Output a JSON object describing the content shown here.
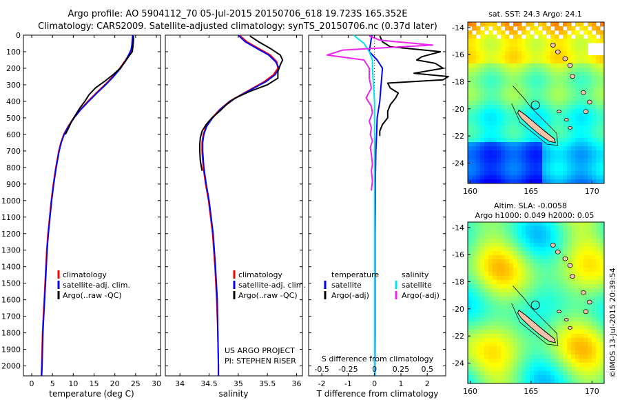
{
  "header": {
    "line1": "Argo profile: AO 5904112_70 05-Jul-2015 20150706_618 19.723S 165.352E",
    "line2": "Climatology: CARS2009. Satellite-adjusted climatology: synTS_20150706.nc (0.37d later)"
  },
  "colors": {
    "climatology": "#ff0000",
    "satellite": "#0000ff",
    "argo": "#000000",
    "sal_satellite": "#00e5ee",
    "sal_argo": "#ee22ee",
    "land": "#f4c2a8"
  },
  "depth_ticks": [
    0,
    100,
    200,
    300,
    400,
    500,
    600,
    700,
    800,
    900,
    1000,
    1100,
    1200,
    1300,
    1400,
    1500,
    1600,
    1700,
    1800,
    1900,
    2000
  ],
  "chart_data": [
    {
      "id": "temperature",
      "type": "line",
      "xlabel": "temperature (deg C)",
      "ylabel": "depth",
      "xlim": [
        -2,
        31
      ],
      "ylim": [
        2060,
        0
      ],
      "xticks": [
        0,
        5,
        10,
        15,
        20,
        25,
        30
      ],
      "legend": [
        "climatology",
        "satellite-adj. clim.",
        "Argo(..raw -QC)"
      ],
      "series": [
        {
          "name": "climatology",
          "depth": [
            0,
            30,
            60,
            90,
            110,
            150,
            200,
            250,
            300,
            350,
            400,
            450,
            500,
            550,
            600,
            650,
            700,
            800,
            900,
            1000,
            1100,
            1200,
            1300,
            1400,
            1500,
            1600,
            1700,
            1800,
            1900,
            2000,
            2060
          ],
          "value": [
            24.4,
            24.4,
            24.3,
            24.1,
            23.6,
            22.6,
            21.2,
            19.5,
            17.6,
            15.5,
            13.5,
            11.7,
            10.1,
            8.8,
            7.7,
            7.0,
            6.5,
            5.8,
            5.2,
            4.7,
            4.3,
            3.9,
            3.6,
            3.4,
            3.2,
            3.0,
            2.8,
            2.6,
            2.5,
            2.4,
            2.3
          ]
        },
        {
          "name": "satellite-adj. clim.",
          "depth": [
            0,
            30,
            60,
            90,
            110,
            150,
            200,
            250,
            300,
            350,
            400,
            450,
            500,
            550,
            600,
            650,
            700,
            800,
            900,
            1000,
            1100,
            1200,
            1300,
            1400,
            1500,
            1600,
            1700,
            1800,
            1900,
            2000,
            2060
          ],
          "value": [
            24.3,
            24.2,
            24.1,
            23.9,
            23.5,
            22.7,
            21.4,
            19.7,
            17.8,
            15.7,
            13.7,
            11.8,
            10.2,
            8.9,
            7.8,
            7.1,
            6.6,
            5.9,
            5.3,
            4.8,
            4.4,
            4.0,
            3.7,
            3.5,
            3.3,
            3.1,
            2.9,
            2.7,
            2.6,
            2.5,
            2.4
          ]
        },
        {
          "name": "Argo(..raw -QC)",
          "depth": [
            5,
            30,
            60,
            100,
            130,
            160,
            200,
            240,
            280,
            320,
            360,
            400,
            440,
            480,
            520,
            560,
            600
          ],
          "value": [
            24.5,
            24.5,
            24.4,
            24.2,
            23.3,
            22.5,
            21.3,
            19.5,
            17.5,
            15.3,
            13.8,
            12.8,
            11.6,
            10.6,
            9.6,
            8.9,
            8.1
          ]
        }
      ]
    },
    {
      "id": "salinity",
      "type": "line",
      "xlabel": "salinity",
      "ylabel": "depth",
      "xlim": [
        33.75,
        36.1
      ],
      "ylim": [
        2060,
        0
      ],
      "xticks": [
        34,
        34.5,
        35,
        35.5,
        36
      ],
      "legend": [
        "climatology",
        "satellite-adj. clim.",
        "Argo(..raw -QC)"
      ],
      "annotation": [
        "US ARGO PROJECT",
        "PI: STEPHEN RISER"
      ],
      "series": [
        {
          "name": "climatology",
          "depth": [
            0,
            40,
            80,
            120,
            160,
            200,
            240,
            280,
            320,
            360,
            400,
            450,
            500,
            550,
            600,
            650,
            700,
            800,
            900,
            1000,
            1200,
            1400,
            1600,
            1800,
            2000,
            2060
          ],
          "value": [
            35.02,
            35.15,
            35.35,
            35.55,
            35.66,
            35.68,
            35.6,
            35.45,
            35.25,
            35.05,
            34.85,
            34.68,
            34.55,
            34.45,
            34.4,
            34.38,
            34.38,
            34.4,
            34.44,
            34.49,
            34.56,
            34.6,
            34.63,
            34.65,
            34.66,
            34.66
          ]
        },
        {
          "name": "satellite-adj. clim.",
          "depth": [
            0,
            40,
            80,
            120,
            160,
            200,
            240,
            280,
            320,
            360,
            400,
            450,
            500,
            550,
            600,
            650,
            700,
            800,
            900,
            1000,
            1200,
            1400,
            1600,
            1800,
            2000,
            2060
          ],
          "value": [
            35.0,
            35.12,
            35.32,
            35.52,
            35.64,
            35.7,
            35.63,
            35.48,
            35.27,
            35.06,
            34.86,
            34.69,
            34.56,
            34.46,
            34.41,
            34.39,
            34.39,
            34.41,
            34.45,
            34.5,
            34.57,
            34.61,
            34.64,
            34.65,
            34.66,
            34.66
          ]
        },
        {
          "name": "Argo(..raw -QC)",
          "depth": [
            5,
            40,
            80,
            120,
            150,
            180,
            220,
            260,
            300,
            340,
            380,
            420,
            460,
            500,
            540,
            580,
            620,
            660,
            700,
            760,
            820
          ],
          "value": [
            35.2,
            35.35,
            35.55,
            35.72,
            35.76,
            35.72,
            35.68,
            35.68,
            35.5,
            35.2,
            34.95,
            34.8,
            34.68,
            34.55,
            34.45,
            34.38,
            34.35,
            34.34,
            34.34,
            34.35,
            34.38
          ]
        }
      ]
    },
    {
      "id": "difference",
      "type": "line",
      "xlabel": "T difference from climatology",
      "xlabel_top": "S difference from climatology",
      "ylabel": "depth",
      "xlim": [
        -2.5,
        2.7
      ],
      "ylim": [
        2060,
        0
      ],
      "xticks_T": [
        -2,
        -1,
        0,
        1,
        2
      ],
      "xticks_S": [
        -0.5,
        -0.25,
        0,
        0.25,
        0.5
      ],
      "legend_temperature": [
        "temperature",
        "satellite",
        "Argo(-adj)"
      ],
      "legend_salinity": [
        "salinity",
        "satellite",
        "Argo(-adj)"
      ],
      "series": [
        {
          "name": "temperature satellite",
          "depth": [
            0,
            50,
            100,
            150,
            200,
            300,
            400,
            500,
            600,
            700,
            800,
            900,
            1000,
            1200,
            1400,
            1600,
            1800,
            2000,
            2060
          ],
          "value": [
            -0.1,
            -0.15,
            -0.2,
            0.1,
            0.3,
            0.25,
            0.2,
            0.1,
            0.08,
            0.05,
            0.04,
            0.03,
            0.03,
            0.02,
            0.02,
            0.02,
            0.02,
            0.01,
            0.01
          ]
        },
        {
          "name": "temperature Argo(-adj)",
          "depth": [
            5,
            40,
            70,
            100,
            130,
            150,
            170,
            200,
            230,
            250,
            270,
            290,
            320,
            350,
            380,
            420,
            460,
            500,
            540,
            580,
            610
          ],
          "value": [
            0.2,
            0.3,
            0.6,
            2.5,
            1.8,
            1.6,
            2.3,
            2.6,
            1.5,
            2.8,
            2.6,
            0.5,
            0.6,
            0.9,
            0.8,
            0.6,
            0.5,
            0.5,
            0.3,
            0.2,
            0.2
          ]
        },
        {
          "name": "salinity satellite",
          "depth": [
            0,
            50,
            100,
            150,
            200,
            300,
            400,
            500,
            600,
            700,
            800,
            1000,
            1200,
            1400,
            1600,
            1800,
            2000,
            2060
          ],
          "value": [
            -0.2,
            -0.1,
            -0.05,
            -0.02,
            -0.02,
            -0.01,
            0.0,
            0.0,
            0.0,
            0.0,
            0.0,
            0.0,
            0.0,
            0.0,
            0.0,
            0.0,
            0.0,
            0.0
          ]
        },
        {
          "name": "salinity Argo(-adj)",
          "depth": [
            5,
            30,
            60,
            90,
            120,
            150,
            200,
            260,
            320,
            380,
            430,
            470,
            520,
            560,
            600,
            640,
            680,
            720,
            780,
            820,
            880,
            940
          ],
          "value": [
            -0.05,
            0.05,
            0.55,
            -0.3,
            -0.45,
            -0.1,
            -0.05,
            -0.05,
            -0.03,
            -0.08,
            -0.03,
            -0.02,
            -0.05,
            -0.03,
            -0.04,
            -0.02,
            -0.04,
            -0.03,
            -0.02,
            -0.03,
            -0.02,
            -0.03
          ]
        }
      ]
    },
    {
      "id": "sst_map",
      "type": "heatmap",
      "title": "sat. SST: 24.3 Argo: 24.1",
      "xticks": [
        160,
        165,
        170
      ],
      "yticks": [
        -14,
        -16,
        -18,
        -20,
        -22,
        -24
      ],
      "xlim": [
        159.8,
        171.0
      ],
      "ylim": [
        -25.5,
        -13.6
      ]
    },
    {
      "id": "sla_map",
      "type": "heatmap",
      "title": "Altim. SLA: -0.0058",
      "subtitle": "Argo h1000: 0.049 h2000: 0.05",
      "xticks": [
        160,
        165,
        170
      ],
      "yticks": [
        -14,
        -16,
        -18,
        -20,
        -22,
        -24
      ],
      "xlim": [
        159.8,
        171.0
      ],
      "ylim": [
        -25.5,
        -13.6
      ]
    }
  ],
  "footer": {
    "stamp": "©IMOS 13-Jul-2015 20:39:54"
  }
}
